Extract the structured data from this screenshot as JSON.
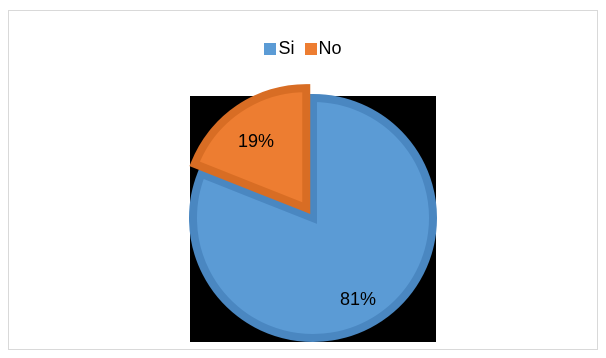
{
  "chart_data": {
    "type": "pie",
    "legend_position": "top",
    "categories": [
      "Si",
      "No"
    ],
    "values": [
      81,
      19
    ],
    "labels": [
      "81%",
      "19%"
    ],
    "colors": [
      "#5b9bd5",
      "#ed7d31"
    ],
    "title": "",
    "exploded": "No"
  }
}
